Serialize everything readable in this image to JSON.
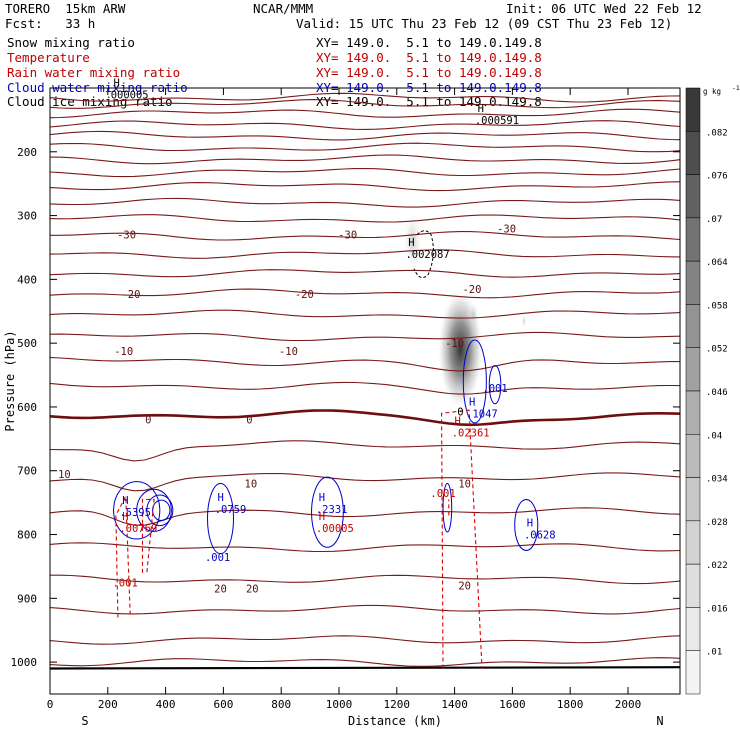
{
  "header": {
    "model": "TORERO  15km ARW",
    "center": "NCAR/MMM",
    "init": "Init: 06 UTC Wed 22 Feb 12",
    "fcst": "Fcst:   33 h",
    "valid": "Valid: 15 UTC Thu 23 Feb 12 (09 CST Thu 23 Feb 12)"
  },
  "fields": [
    {
      "label": "Snow mixing ratio",
      "xy": "XY= 149.0.  5.1 to 149.0.149.8",
      "color": "#000000"
    },
    {
      "label": "Temperature",
      "xy": "XY= 149.0.  5.1 to 149.0.149.8",
      "color": "#c00000"
    },
    {
      "label": "Rain water mixing ratio",
      "xy": "XY= 149.0.  5.1 to 149.0.149.8",
      "color": "#c00000"
    },
    {
      "label": "Cloud water mixing ratio",
      "xy": "XY= 149.0.  5.1 to 149.0.149.8",
      "color": "#0000c8"
    },
    {
      "label": "Cloud ice mixing ratio",
      "xy": "XY= 149.0.  5.1 to 149.0.149.8",
      "color": "#000000"
    }
  ],
  "chart_data": {
    "type": "contour",
    "xlabel": "Distance (km)",
    "ylabel": "Pressure (hPa)",
    "xlim": [
      0,
      2180
    ],
    "ylim": [
      1050,
      100
    ],
    "x_ticks": [
      0,
      200,
      400,
      600,
      800,
      1000,
      1200,
      1400,
      1600,
      1800,
      2000
    ],
    "y_ticks": [
      200,
      300,
      400,
      500,
      600,
      700,
      800,
      900,
      1000
    ],
    "end_labels": {
      "left": "S",
      "right": "N"
    },
    "colorbar": {
      "unit": "g kg",
      "unit_exp": "-1",
      "levels": [
        ".01",
        ".016",
        ".022",
        ".028",
        ".034",
        ".04",
        ".046",
        ".052",
        ".058",
        ".064",
        ".07",
        ".076",
        ".082"
      ],
      "shades": [
        "#f4f4f4",
        "#e9e9e9",
        "#dedede",
        "#d3d3d3",
        "#c7c7c7",
        "#bbbbbb",
        "#afafaf",
        "#a1a1a1",
        "#939393",
        "#848484",
        "#737373",
        "#616161",
        "#4d4d4d",
        "#393939"
      ]
    },
    "temperature_labels": [
      {
        "text": "-30",
        "x": 265,
        "p": 330
      },
      {
        "text": "-30",
        "x": 1030,
        "p": 330
      },
      {
        "text": "-30",
        "x": 1580,
        "p": 320
      },
      {
        "text": "-20",
        "x": 280,
        "p": 423
      },
      {
        "text": "-20",
        "x": 880,
        "p": 423
      },
      {
        "text": "-20",
        "x": 1460,
        "p": 415
      },
      {
        "text": "-10",
        "x": 255,
        "p": 512
      },
      {
        "text": "-10",
        "x": 825,
        "p": 512
      },
      {
        "text": "-10",
        "x": 1400,
        "p": 500
      },
      {
        "text": "0",
        "x": 340,
        "p": 620
      },
      {
        "text": "0",
        "x": 690,
        "p": 620
      },
      {
        "text": "10",
        "x": 50,
        "p": 705
      },
      {
        "text": "10",
        "x": 695,
        "p": 720
      },
      {
        "text": "10",
        "x": 1435,
        "p": 720
      },
      {
        "text": "20",
        "x": 590,
        "p": 885
      },
      {
        "text": "20",
        "x": 700,
        "p": 885
      },
      {
        "text": "20",
        "x": 1435,
        "p": 880
      }
    ],
    "max_labels": [
      {
        "text": "H",
        "value": ".000591",
        "x": 1470,
        "p": 150,
        "color": "#000000"
      },
      {
        "text": "H",
        "value": ".002087",
        "x": 1230,
        "p": 360,
        "color": "#000000"
      },
      {
        "text": "H",
        "value": "000005",
        "x": 210,
        "p": 110,
        "color": "#000000"
      },
      {
        "text": "H",
        "value": ".1047",
        "x": 1440,
        "p": 610,
        "color": "#0000c8"
      },
      {
        "text": "H",
        "value": ".02361",
        "x": 1390,
        "p": 640,
        "color": "#c00000"
      },
      {
        "text": "H",
        "value": ".5395",
        "x": 240,
        "p": 765,
        "color": "#0000c8"
      },
      {
        "text": "H",
        "value": ".00769",
        "x": 240,
        "p": 790,
        "color": "#c00000"
      },
      {
        "text": "H",
        "value": ".0759",
        "x": 570,
        "p": 760,
        "color": "#0000c8"
      },
      {
        "text": "H",
        "value": ".2331",
        "x": 920,
        "p": 760,
        "color": "#0000c8"
      },
      {
        "text": "H",
        "value": ".00005",
        "x": 920,
        "p": 790,
        "color": "#c00000"
      },
      {
        "text": "H",
        "value": ".0628",
        "x": 1640,
        "p": 800,
        "color": "#0000c8"
      }
    ],
    "misc_labels": [
      {
        "text": ".001",
        "x": 1540,
        "p": 570,
        "color": "#0000c8"
      },
      {
        "text": ".001",
        "x": 580,
        "p": 835,
        "color": "#0000c8"
      },
      {
        "text": ".001",
        "x": 260,
        "p": 875,
        "color": "#c00000"
      },
      {
        "text": ".001",
        "x": 1360,
        "p": 735,
        "color": "#c00000"
      },
      {
        "text": "0",
        "x": 1420,
        "p": 607,
        "color": "#000000"
      }
    ]
  }
}
